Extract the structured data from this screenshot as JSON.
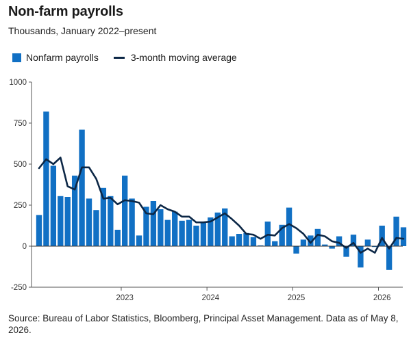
{
  "title": "Non-farm payrolls",
  "subtitle": "Thousands, January 2022–present",
  "source": "Source: Bureau of Labor Statistics, Bloomberg, Principal Asset Management. Data as of May 8, 2026.",
  "colors": {
    "bar": "#1170c4",
    "line": "#0c2746",
    "zero_line": "#333333",
    "axis": "#555555"
  },
  "chart_data": {
    "type": "bar",
    "x_start": "2022-01",
    "x_ticks": [
      "2023",
      "2024",
      "2025",
      "2026"
    ],
    "y_ticks": [
      "1000",
      "750",
      "500",
      "250",
      "0",
      "-250"
    ],
    "ylim": [
      -250,
      1000
    ],
    "legend_position": "top-left",
    "grid": false,
    "series": [
      {
        "name": "Nonfarm payrolls",
        "kind": "bar",
        "values": [
          190,
          820,
          490,
          305,
          300,
          430,
          710,
          290,
          220,
          355,
          305,
          100,
          430,
          290,
          65,
          240,
          275,
          225,
          160,
          210,
          155,
          160,
          125,
          145,
          175,
          205,
          230,
          60,
          75,
          80,
          55,
          5,
          150,
          30,
          130,
          235,
          -45,
          40,
          65,
          105,
          10,
          -15,
          60,
          -65,
          70,
          -130,
          40,
          -5,
          125,
          -145,
          180,
          115
        ]
      },
      {
        "name": "3-month moving average",
        "kind": "line",
        "values": [
          475,
          530,
          500,
          540,
          365,
          345,
          480,
          480,
          410,
          290,
          295,
          255,
          280,
          275,
          265,
          200,
          195,
          250,
          225,
          210,
          180,
          180,
          145,
          145,
          150,
          175,
          200,
          165,
          125,
          75,
          70,
          45,
          70,
          65,
          110,
          135,
          110,
          75,
          20,
          70,
          60,
          30,
          20,
          -10,
          20,
          -40,
          -15,
          -40,
          50,
          -15,
          50,
          45
        ]
      }
    ]
  }
}
